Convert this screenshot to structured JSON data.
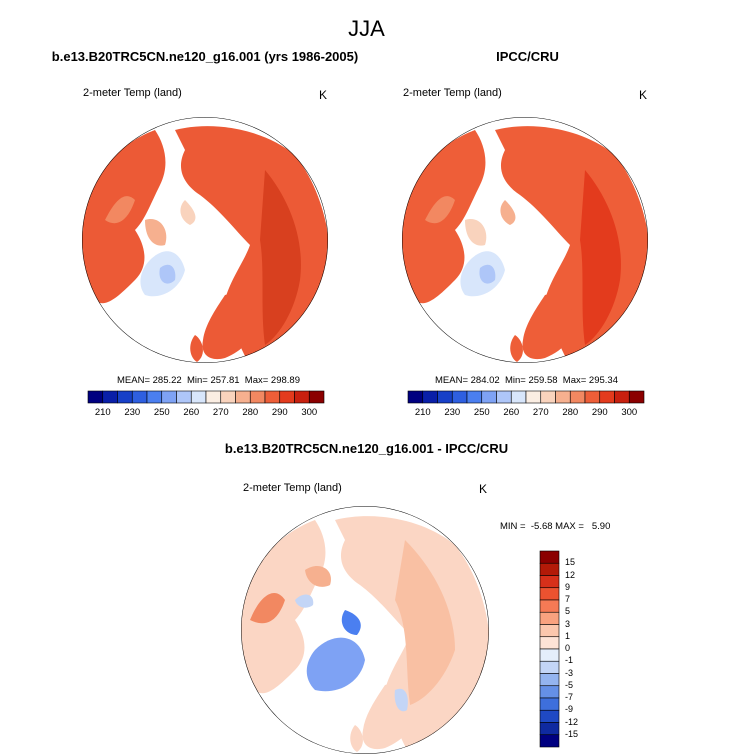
{
  "figure": {
    "title": "JJA",
    "diff_title": "b.e13.B20TRC5CN.ne120_g16.001 - IPCC/CRU"
  },
  "panels": [
    {
      "title": "b.e13.B20TRC5CN.ne120_g16.001 (yrs 1986-2005)",
      "variable": "2-meter Temp (land)",
      "units": "K",
      "stats": "MEAN= 285.22  Min= 257.81  Max= 298.89"
    },
    {
      "title": "IPCC/CRU",
      "variable": "2-meter Temp (land)",
      "units": "K",
      "stats": "MEAN= 284.02  Min= 259.58  Max= 295.34"
    },
    {
      "variable": "2-meter Temp (land)",
      "units": "K",
      "stats": "MIN =  -5.68 MAX =   5.90"
    }
  ],
  "chart_data": [
    {
      "type": "heatmap",
      "projection": "north polar stereographic",
      "title": "b.e13.B20TRC5CN.ne120_g16.001 (yrs 1986-2005)",
      "variable": "2-meter Temp (land)",
      "units": "K",
      "mean": 285.22,
      "min": 257.81,
      "max": 298.89,
      "colorbar": {
        "orientation": "horizontal",
        "levels": [
          210,
          220,
          230,
          240,
          250,
          255,
          260,
          265,
          270,
          275,
          280,
          285,
          290,
          295,
          300
        ],
        "labels": [
          "210",
          "230",
          "250",
          "260",
          "270",
          "280",
          "290",
          "300"
        ],
        "colors": [
          "#000080",
          "#0a1fa8",
          "#1740c8",
          "#2e5fe0",
          "#4b7ff0",
          "#7ea2f4",
          "#aec6f8",
          "#d8e6fb",
          "#fbeee3",
          "#f9d3bd",
          "#f6b08f",
          "#f28861",
          "#ee5e38",
          "#e33b1d",
          "#c8200f",
          "#8b0000"
        ]
      }
    },
    {
      "type": "heatmap",
      "projection": "north polar stereographic",
      "title": "IPCC/CRU",
      "variable": "2-meter Temp (land)",
      "units": "K",
      "mean": 284.02,
      "min": 259.58,
      "max": 295.34,
      "colorbar": {
        "orientation": "horizontal",
        "levels": [
          210,
          220,
          230,
          240,
          250,
          255,
          260,
          265,
          270,
          275,
          280,
          285,
          290,
          295,
          300
        ],
        "labels": [
          "210",
          "230",
          "250",
          "260",
          "270",
          "280",
          "290",
          "300"
        ],
        "colors": [
          "#000080",
          "#0a1fa8",
          "#1740c8",
          "#2e5fe0",
          "#4b7ff0",
          "#7ea2f4",
          "#aec6f8",
          "#d8e6fb",
          "#fbeee3",
          "#f9d3bd",
          "#f6b08f",
          "#f28861",
          "#ee5e38",
          "#e33b1d",
          "#c8200f",
          "#8b0000"
        ]
      }
    },
    {
      "type": "heatmap",
      "projection": "north polar stereographic",
      "title": "b.e13.B20TRC5CN.ne120_g16.001 - IPCC/CRU",
      "variable": "2-meter Temp (land)",
      "units": "K",
      "min": -5.68,
      "max": 5.9,
      "colorbar": {
        "orientation": "vertical",
        "levels": [
          15,
          12,
          9,
          7,
          5,
          3,
          1,
          0,
          -1,
          -3,
          -5,
          -7,
          -9,
          -12,
          -15
        ],
        "labels": [
          "15",
          "12",
          "9",
          "7",
          "5",
          "3",
          "1",
          "0",
          "-1",
          "-3",
          "-5",
          "-7",
          "-9",
          "-12",
          "-15"
        ],
        "colors": [
          "#8b0000",
          "#b31a08",
          "#d7301a",
          "#ec5230",
          "#f57a55",
          "#f9a27f",
          "#fbc7ad",
          "#fde3d6",
          "#e4eefb",
          "#c3d5f6",
          "#94b4ef",
          "#6590e6",
          "#3e6fdc",
          "#1f49c4",
          "#0f2aa0",
          "#000080"
        ]
      }
    }
  ]
}
